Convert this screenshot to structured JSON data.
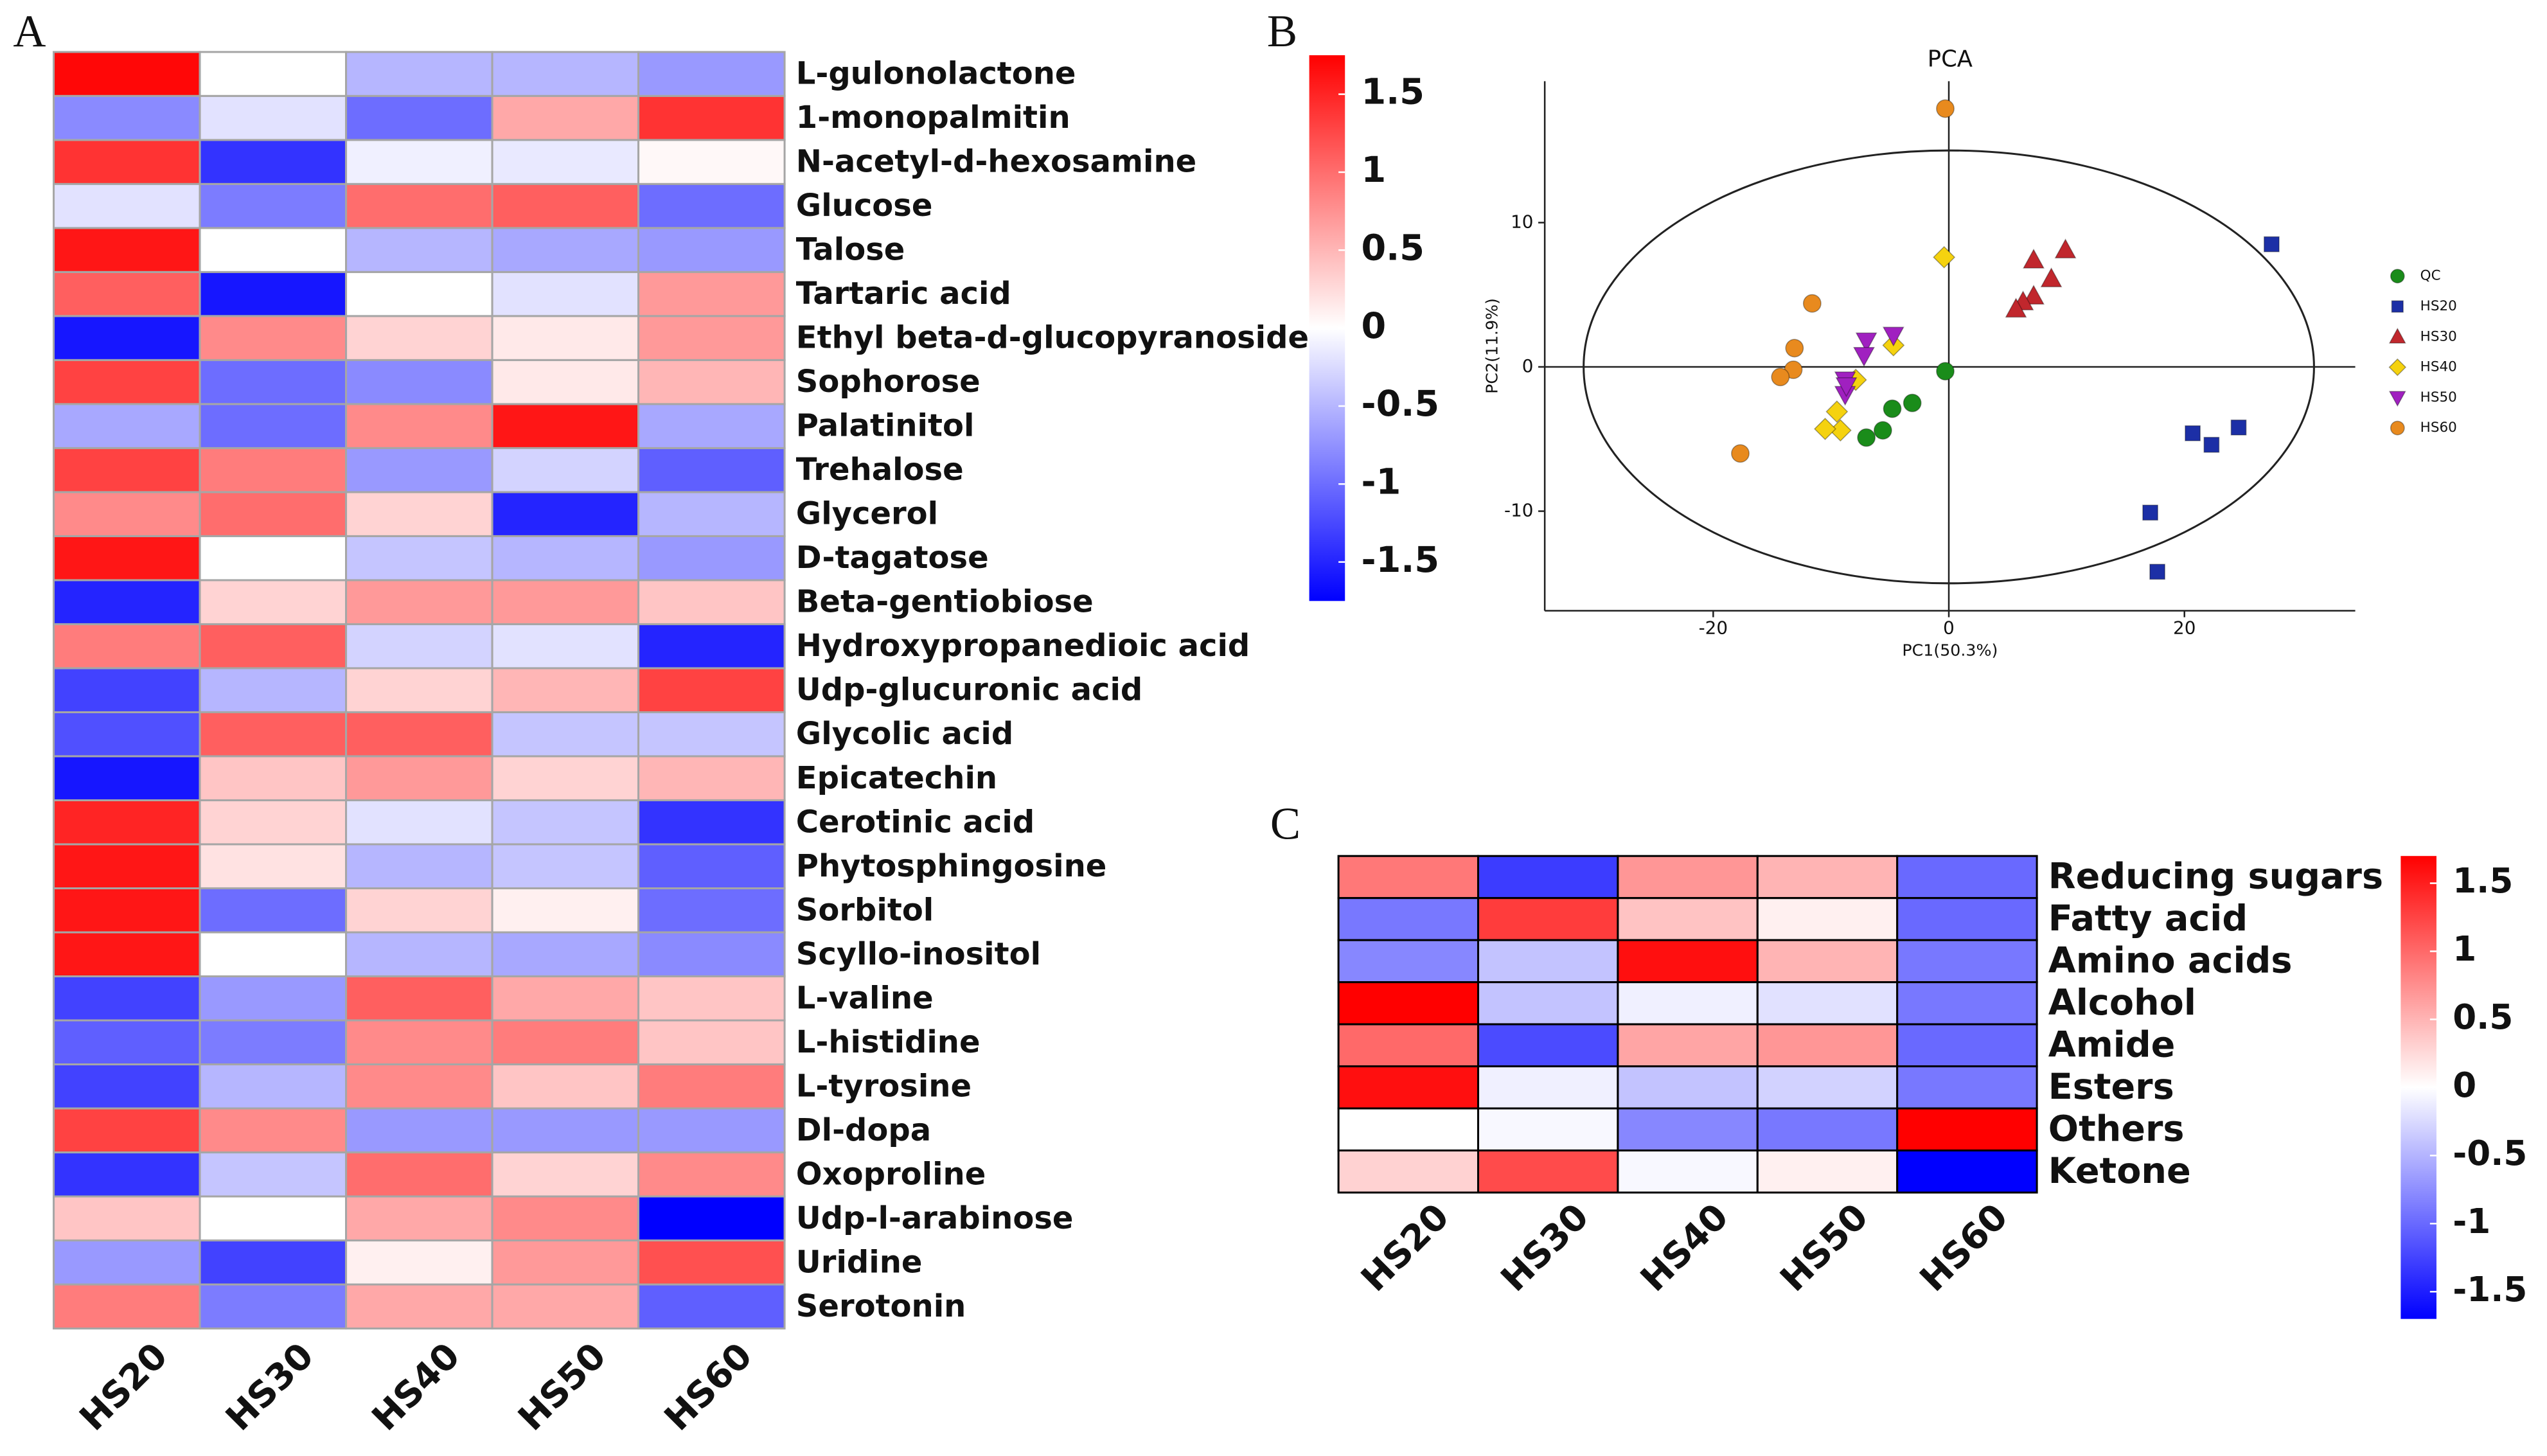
{
  "chart_data": [
    {
      "type": "heatmap",
      "panel": "A",
      "x": [
        "HS20",
        "HS30",
        "HS40",
        "HS50",
        "HS60"
      ],
      "y": [
        "L-gulonolactone",
        "1-monopalmitin",
        "N-acetyl-d-hexosamine",
        "Glucose",
        "Talose",
        "Tartaric acid",
        "Ethyl beta-d-glucopyranoside",
        "Sophorose",
        "Palatinitol",
        "Trehalose",
        "Glycerol",
        "D-tagatose",
        "Beta-gentiobiose",
        "Hydroxypropanedioic acid",
        "Udp-glucuronic acid",
        "Glycolic acid",
        "Epicatechin",
        "Cerotinic acid",
        "Phytosphingosine",
        "Sorbitol",
        "Scyllo-inositol",
        "L-valine",
        "L-histidine",
        "L-tyrosine",
        "Dl-dopa",
        "Oxoproline",
        "Udp-l-arabinose",
        "Uridine",
        "Serotonin"
      ],
      "values": [
        [
          1.7,
          0,
          -0.5,
          -0.5,
          -0.7
        ],
        [
          -0.8,
          -0.2,
          -1.0,
          0.6,
          1.4
        ],
        [
          1.4,
          -1.4,
          -0.1,
          -0.15,
          0.05
        ],
        [
          -0.2,
          -0.9,
          1.0,
          1.1,
          -1.0
        ],
        [
          1.6,
          0,
          -0.5,
          -0.6,
          -0.7
        ],
        [
          1.1,
          -1.6,
          0,
          -0.2,
          0.7
        ],
        [
          -1.6,
          0.8,
          0.3,
          0.15,
          0.7
        ],
        [
          1.3,
          -1.0,
          -0.8,
          0.15,
          0.5
        ],
        [
          -0.6,
          -1.0,
          0.8,
          1.6,
          -0.6
        ],
        [
          1.3,
          0.9,
          -0.7,
          -0.3,
          -1.1
        ],
        [
          0.8,
          1.0,
          0.3,
          -1.5,
          -0.5
        ],
        [
          1.6,
          0,
          -0.4,
          -0.5,
          -0.7
        ],
        [
          -1.5,
          0.3,
          0.7,
          0.7,
          0.4
        ],
        [
          0.9,
          1.1,
          -0.3,
          -0.2,
          -1.5
        ],
        [
          -1.3,
          -0.5,
          0.3,
          0.5,
          1.3
        ],
        [
          -1.2,
          1.1,
          1.1,
          -0.4,
          -0.4
        ],
        [
          -1.6,
          0.4,
          0.7,
          0.3,
          0.5
        ],
        [
          1.5,
          0.3,
          -0.2,
          -0.4,
          -1.4
        ],
        [
          1.6,
          0.2,
          -0.5,
          -0.4,
          -1.1
        ],
        [
          1.6,
          -1.0,
          0.3,
          0.1,
          -1.0
        ],
        [
          1.6,
          0,
          -0.5,
          -0.6,
          -0.8
        ],
        [
          -1.3,
          -0.7,
          1.1,
          0.6,
          0.4
        ],
        [
          -1.1,
          -0.9,
          0.8,
          0.9,
          0.4
        ],
        [
          -1.3,
          -0.5,
          0.8,
          0.4,
          0.9
        ],
        [
          1.3,
          0.8,
          -0.7,
          -0.7,
          -0.7
        ],
        [
          -1.4,
          -0.4,
          1.0,
          0.3,
          0.8
        ],
        [
          0.4,
          0,
          0.6,
          0.8,
          -1.8
        ],
        [
          -0.7,
          -1.3,
          0.1,
          0.7,
          1.2
        ],
        [
          0.9,
          -0.9,
          0.6,
          0.6,
          -1.1
        ]
      ],
      "clim": [
        -1.75,
        1.75
      ],
      "cticks": [
        -1.5,
        -1,
        -0.5,
        0,
        0.5,
        1,
        1.5
      ],
      "colors": [
        "#0000ff",
        "#ffffff",
        "#ff0000"
      ],
      "border_color": "#a6a6a6"
    },
    {
      "type": "scatter",
      "panel": "B",
      "title": "PCA",
      "x_label": "PC1(50.3%)",
      "y_label": "PC2(11.9%)",
      "xlim": [
        -34.3,
        34.5
      ],
      "ylim": [
        -16.9,
        19.8
      ],
      "xticks": [
        -20,
        0,
        20
      ],
      "yticks": [
        -10,
        0,
        10
      ],
      "reference_lines": {
        "x": 0,
        "y": 0
      },
      "ellipse": {
        "cx": 0,
        "cy": 0,
        "rx": 31,
        "ry": 15
      },
      "series": [
        {
          "name": "QC",
          "color": "#1a8c1a",
          "marker": "circle",
          "x": [
            -0.3,
            -3.1,
            -4.8,
            -5.6,
            -7.0
          ],
          "values": [
            -0.3,
            -2.5,
            -2.9,
            -4.4,
            -4.9
          ]
        },
        {
          "name": "HS20",
          "color": "#1c2fa6",
          "marker": "square",
          "x": [
            27.4,
            20.7,
            22.3,
            24.6,
            17.1,
            17.7
          ],
          "values": [
            8.5,
            -4.6,
            -5.4,
            -4.2,
            -10.1,
            -14.2
          ]
        },
        {
          "name": "HS30",
          "color": "#c1272d",
          "marker": "triangle",
          "x": [
            7.2,
            9.9,
            8.7,
            7.2,
            6.3,
            5.7
          ],
          "values": [
            7.4,
            8.1,
            6.1,
            4.9,
            4.5,
            4.0
          ]
        },
        {
          "name": "HS40",
          "color": "#f5d20f",
          "marker": "diamond",
          "x": [
            -0.4,
            -4.7,
            -7.9,
            -9.5,
            -9.2,
            -10.5
          ],
          "values": [
            7.6,
            1.5,
            -0.9,
            -3.1,
            -4.4,
            -4.3
          ]
        },
        {
          "name": "HS50",
          "color": "#a020c0",
          "marker": "triangle-down",
          "x": [
            -7.0,
            -4.7,
            -8.8,
            -8.8,
            -8.7,
            -7.2
          ],
          "values": [
            1.8,
            2.2,
            -0.9,
            -1.9,
            -1.3,
            0.8
          ]
        },
        {
          "name": "HS60",
          "color": "#e88a1e",
          "marker": "circle",
          "x": [
            -0.3,
            -11.6,
            -13.1,
            -13.2,
            -14.3,
            -17.7
          ],
          "values": [
            17.9,
            4.4,
            1.3,
            -0.2,
            -0.7,
            -6.0
          ]
        }
      ]
    },
    {
      "type": "heatmap",
      "panel": "C",
      "x": [
        "HS20",
        "HS30",
        "HS40",
        "HS50",
        "HS60"
      ],
      "y": [
        "Reducing sugars",
        "Fatty acid",
        "Amino acids",
        "Alcohol",
        "Amide",
        "Esters",
        "Others",
        "Ketone"
      ],
      "values": [
        [
          0.9,
          -1.3,
          0.7,
          0.5,
          -1.0
        ],
        [
          -0.9,
          1.3,
          0.4,
          0.1,
          -1.0
        ],
        [
          -0.8,
          -0.4,
          1.6,
          0.5,
          -0.9
        ],
        [
          1.7,
          -0.4,
          -0.1,
          -0.2,
          -0.9
        ],
        [
          1.0,
          -1.2,
          0.6,
          0.7,
          -1.0
        ],
        [
          1.6,
          -0.1,
          -0.4,
          -0.3,
          -0.9
        ],
        [
          0,
          -0.05,
          -0.8,
          -0.9,
          1.7
        ],
        [
          0.3,
          1.2,
          -0.05,
          0.1,
          -1.7
        ]
      ],
      "clim": [
        -1.7,
        1.7
      ],
      "cticks": [
        -1.5,
        -1,
        -0.5,
        0,
        0.5,
        1,
        1.5
      ],
      "colors": [
        "#0000ff",
        "#ffffff",
        "#ff0000"
      ],
      "border_color": "#000000"
    }
  ]
}
